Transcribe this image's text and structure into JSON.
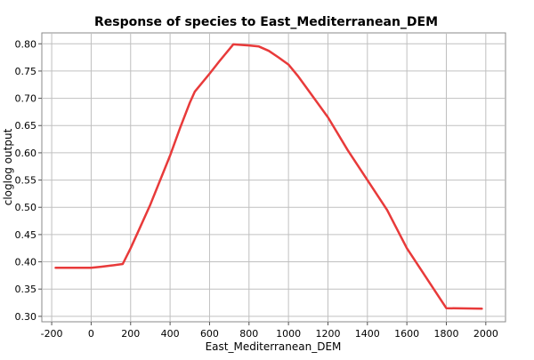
{
  "chart_data": {
    "type": "line",
    "title": "Response of species to East_Mediterranean_DEM",
    "xlabel": "East_Mediterranean_DEM",
    "ylabel": "cloglog output",
    "xlim": [
      -250,
      2100
    ],
    "ylim": [
      0.29,
      0.82
    ],
    "x_ticks": [
      -200,
      0,
      200,
      400,
      600,
      800,
      1000,
      1200,
      1400,
      1600,
      1800,
      2000
    ],
    "y_ticks": [
      0.3,
      0.35,
      0.4,
      0.45,
      0.5,
      0.55,
      0.6,
      0.65,
      0.7,
      0.75,
      0.8
    ],
    "x_tick_labels": [
      "-200",
      "0",
      "200",
      "400",
      "600",
      "800",
      "1000",
      "1200",
      "1400",
      "1600",
      "1800",
      "2000"
    ],
    "y_tick_labels": [
      "0.30",
      "0.35",
      "0.40",
      "0.45",
      "0.50",
      "0.55",
      "0.60",
      "0.65",
      "0.70",
      "0.75",
      "0.80"
    ],
    "grid": true,
    "line_color": "#e83a3a",
    "grid_color": "#c0c0c0",
    "series": [
      {
        "x": [
          -180,
          -100,
          0,
          50,
          100,
          160,
          200,
          250,
          300,
          400,
          450,
          500,
          525,
          600,
          650,
          700,
          720,
          760,
          800,
          850,
          900,
          950,
          1000,
          1050,
          1100,
          1200,
          1300,
          1400,
          1500,
          1600,
          1700,
          1800,
          1980
        ],
        "y": [
          0.389,
          0.389,
          0.389,
          0.391,
          0.393,
          0.396,
          0.425,
          0.465,
          0.505,
          0.595,
          0.645,
          0.692,
          0.712,
          0.745,
          0.768,
          0.79,
          0.799,
          0.798,
          0.797,
          0.795,
          0.787,
          0.775,
          0.762,
          0.74,
          0.715,
          0.665,
          0.605,
          0.55,
          0.495,
          0.425,
          0.37,
          0.315,
          0.314
        ]
      }
    ]
  }
}
